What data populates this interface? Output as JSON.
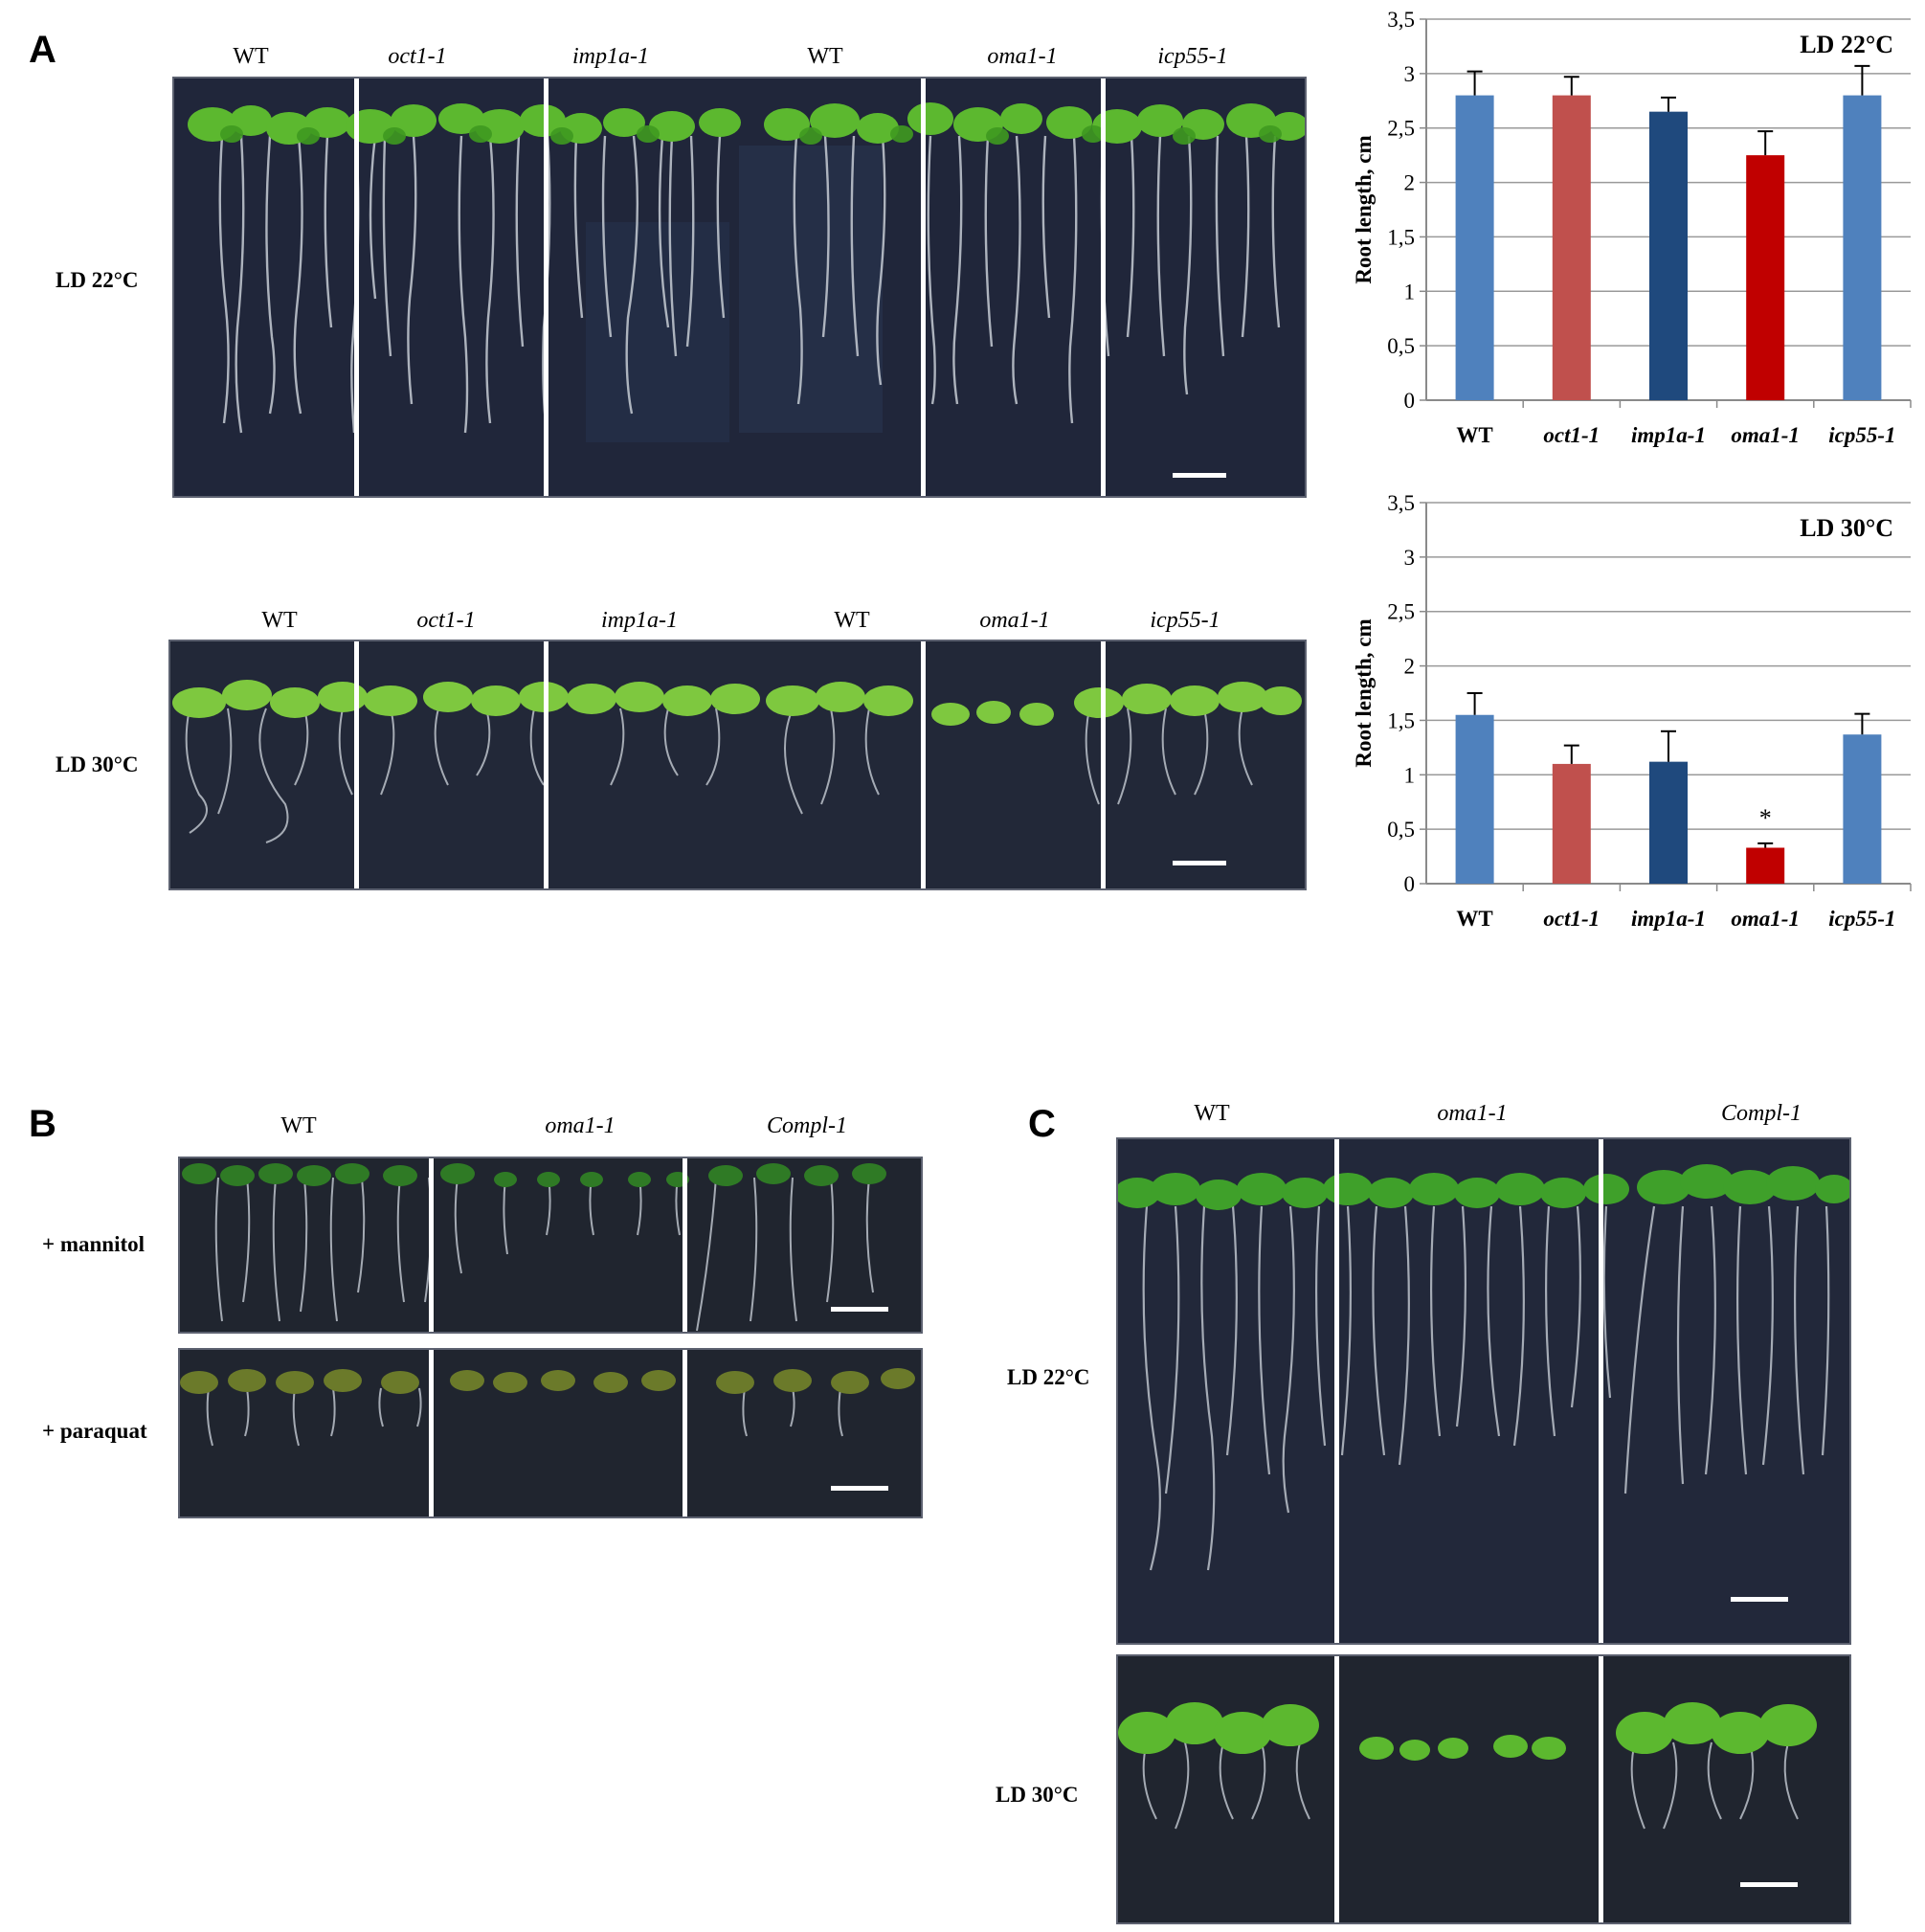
{
  "panels": {
    "A": {
      "letter": "A",
      "rows": [
        {
          "condition": "LD 22°C",
          "genotypes": [
            "WT",
            "oct1-1",
            "imp1a-1",
            "WT",
            "oma1-1",
            "icp55-1"
          ]
        },
        {
          "condition": "LD 30°C",
          "genotypes": [
            "WT",
            "oct1-1",
            "imp1a-1",
            "WT",
            "oma1-1",
            "icp55-1"
          ]
        }
      ]
    },
    "B": {
      "letter": "B",
      "genotypes": [
        "WT",
        "oma1-1",
        "Compl-1"
      ],
      "rows": [
        {
          "condition": "+ mannitol"
        },
        {
          "condition": "+ paraquat"
        }
      ]
    },
    "C": {
      "letter": "C",
      "genotypes": [
        "WT",
        "oma1-1",
        "Compl-1"
      ],
      "rows": [
        {
          "condition": "LD 22°C"
        },
        {
          "condition": "LD 30°C"
        }
      ]
    }
  },
  "chart_data": [
    {
      "type": "bar",
      "title": "LD 22°C",
      "xlabel": "",
      "ylabel": "Root length, cm",
      "categories": [
        "WT",
        "oct1-1",
        "imp1a-1",
        "oma1-1",
        "icp55-1"
      ],
      "values": [
        2.8,
        2.8,
        2.65,
        2.25,
        2.8
      ],
      "errors": [
        0.22,
        0.17,
        0.13,
        0.22,
        0.27
      ],
      "colors": [
        "#4f81bd",
        "#c0504d",
        "#1f497d",
        "#c00000",
        "#4f81bd"
      ],
      "ylim": [
        0,
        3.5
      ],
      "yticks": [
        "0",
        "0,5",
        "1",
        "1,5",
        "2",
        "2,5",
        "3",
        "3,5"
      ],
      "grid": true,
      "annotations": []
    },
    {
      "type": "bar",
      "title": "LD 30°C",
      "xlabel": "",
      "ylabel": "Root length, cm",
      "categories": [
        "WT",
        "oct1-1",
        "imp1a-1",
        "oma1-1",
        "icp55-1"
      ],
      "values": [
        1.55,
        1.1,
        1.12,
        0.33,
        1.37
      ],
      "errors": [
        0.2,
        0.17,
        0.28,
        0.04,
        0.19
      ],
      "colors": [
        "#4f81bd",
        "#c0504d",
        "#1f497d",
        "#c00000",
        "#4f81bd"
      ],
      "ylim": [
        0,
        3.5
      ],
      "yticks": [
        "0",
        "0,5",
        "1",
        "1,5",
        "2",
        "2,5",
        "3",
        "3,5"
      ],
      "grid": true,
      "annotations": [
        {
          "category": "oma1-1",
          "text": "*"
        }
      ]
    }
  ]
}
